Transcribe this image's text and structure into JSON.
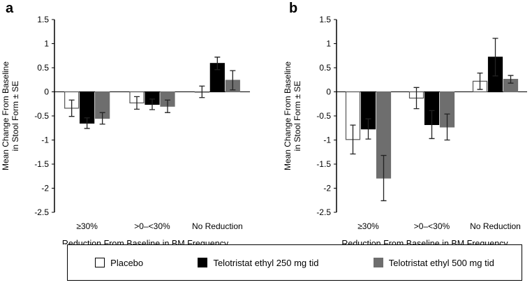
{
  "colors": {
    "placebo": "#ffffff",
    "t250": "#000000",
    "t500": "#6e6e6e"
  },
  "chart_data": [
    {
      "panel": "a",
      "type": "bar",
      "ylabel_lines": [
        "Mean Change From Baseline",
        "in Stool Form ± SE"
      ],
      "xlabel": "Reduction From Baseline in BM Frequency",
      "categories": [
        "≥30%",
        ">0–<30%",
        "No Reduction"
      ],
      "ylim": [
        -2.5,
        1.5
      ],
      "yticks": [
        "1.5",
        "1",
        "0.5",
        "0",
        "-0.5",
        "-1",
        "-1.5",
        "-2",
        "-2.5"
      ],
      "series": [
        {
          "name": "Placebo",
          "values": [
            -0.34,
            -0.23,
            0.0
          ],
          "se": [
            0.17,
            0.13,
            0.12
          ]
        },
        {
          "name": "Telotristat ethyl 250 mg tid",
          "values": [
            -0.65,
            -0.26,
            0.59
          ],
          "se": [
            0.11,
            0.11,
            0.13
          ]
        },
        {
          "name": "Telotristat ethyl 500 mg tid",
          "values": [
            -0.55,
            -0.3,
            0.24
          ],
          "se": [
            0.12,
            0.13,
            0.2
          ]
        }
      ]
    },
    {
      "panel": "b",
      "type": "bar",
      "ylabel_lines": [
        "Mean Change From Baseline",
        "in Stool Form ± SE"
      ],
      "xlabel": "Reduction From Baseline in BM Frequency",
      "categories": [
        "≥30%",
        ">0–<30%",
        "No Reduction"
      ],
      "ylim": [
        -2.5,
        1.5
      ],
      "yticks": [
        "1.5",
        "1",
        "0.5",
        "0",
        "-0.5",
        "-1",
        "-1.5",
        "-2",
        "-2.5"
      ],
      "series": [
        {
          "name": "Placebo",
          "values": [
            -0.99,
            -0.13,
            0.22
          ],
          "se": [
            0.3,
            0.22,
            0.17
          ]
        },
        {
          "name": "Telotristat ethyl 250 mg tid",
          "values": [
            -0.77,
            -0.68,
            0.72
          ],
          "se": [
            0.21,
            0.29,
            0.39
          ]
        },
        {
          "name": "Telotristat ethyl 500 mg tid",
          "values": [
            -1.79,
            -0.73,
            0.26
          ],
          "se": [
            0.47,
            0.27,
            0.08
          ]
        }
      ]
    }
  ],
  "legend": [
    "Placebo",
    "Telotristat ethyl 250 mg tid",
    "Telotristat ethyl 500 mg tid"
  ]
}
